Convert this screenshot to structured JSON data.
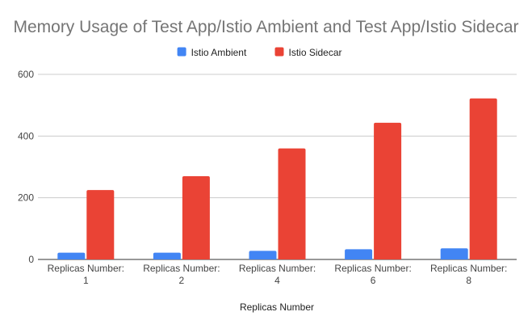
{
  "chart_data": {
    "type": "bar",
    "title": "Memory Usage of Test App/Istio Ambient and Test App/Istio Sidecar",
    "xlabel": "Replicas Number",
    "ylabel": "",
    "categories": [
      [
        "Replicas Number:",
        "1"
      ],
      [
        "Replicas Number:",
        "2"
      ],
      [
        "Replicas Number:",
        "4"
      ],
      [
        "Replicas Number:",
        "6"
      ],
      [
        "Replicas Number:",
        "8"
      ]
    ],
    "series": [
      {
        "name": "Istio Ambient",
        "color": "#4285f4",
        "values": [
          22,
          22,
          28,
          33,
          36
        ]
      },
      {
        "name": "Istio Sidecar",
        "color": "#ea4335",
        "values": [
          225,
          270,
          360,
          443,
          522
        ]
      }
    ],
    "ylim": [
      0,
      600
    ],
    "yticks": [
      0,
      200,
      400,
      600
    ],
    "grid": true,
    "legend_position": "top-center"
  }
}
